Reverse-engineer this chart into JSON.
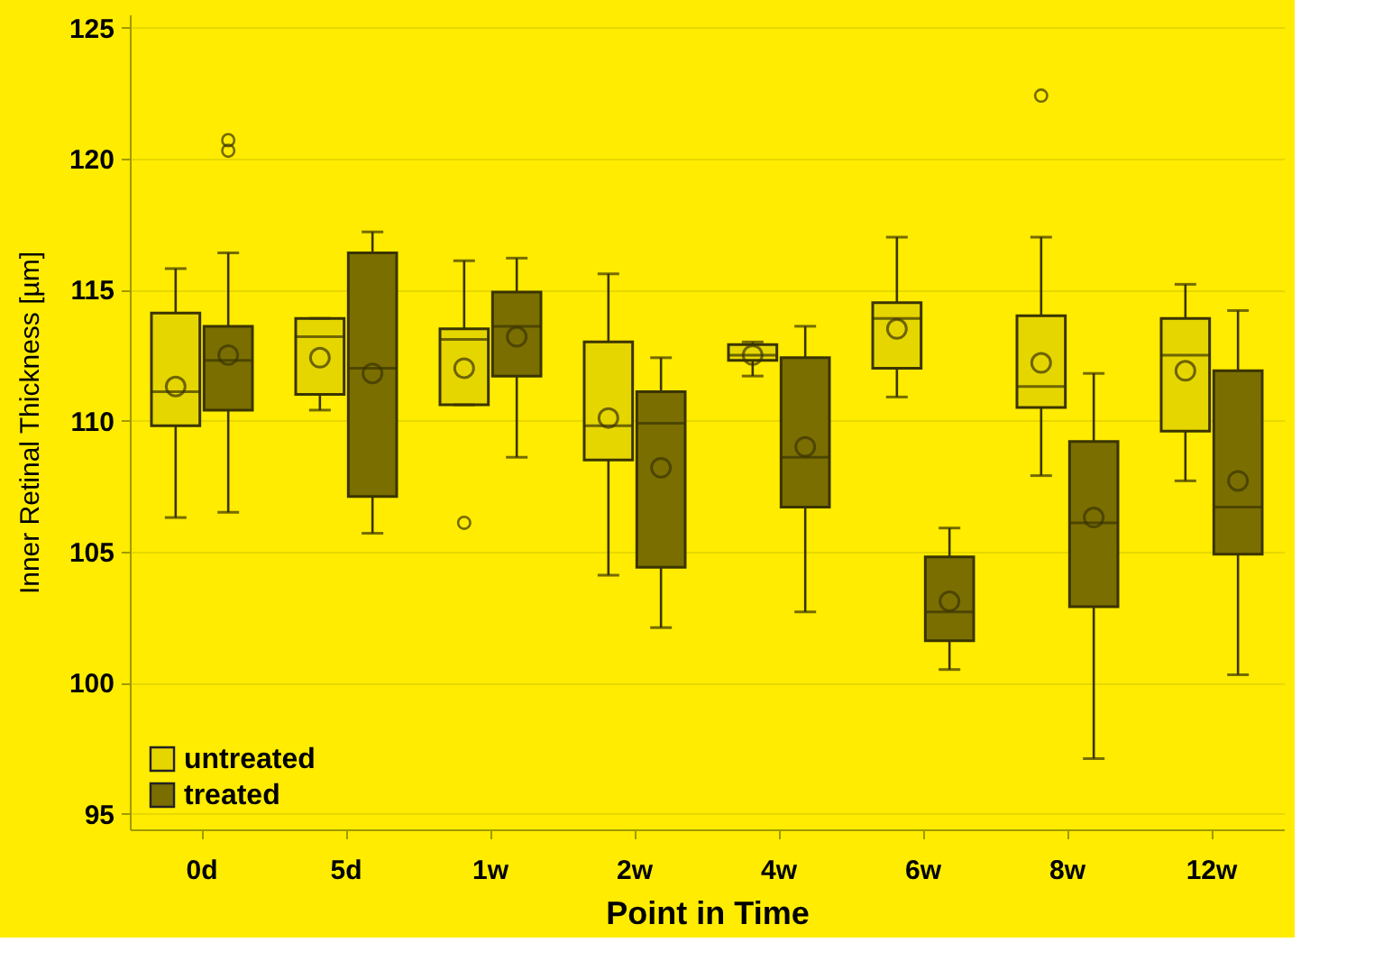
{
  "chart_data": {
    "type": "box",
    "xlabel": "Point in Time",
    "ylabel": "Inner Retinal Thickness [µm]",
    "categories": [
      "0d",
      "5d",
      "1w",
      "2w",
      "4w",
      "6w",
      "8w",
      "12w"
    ],
    "ylim": [
      94.4,
      125.5
    ],
    "yticks": [
      95,
      100,
      105,
      110,
      115,
      120,
      125
    ],
    "grid": "y",
    "legend": "bottom left",
    "series": [
      {
        "name": "untreated",
        "color": "#e6d600",
        "boxes": [
          {
            "low": 106.3,
            "q1": 109.8,
            "median": 111.1,
            "q3": 114.1,
            "high": 115.8,
            "mean": 111.3
          },
          {
            "low": 110.4,
            "q1": 111.0,
            "median": 113.2,
            "q3": 113.9,
            "high": 113.9,
            "mean": 112.4
          },
          {
            "low": 110.6,
            "q1": 110.6,
            "median": 113.1,
            "q3": 113.5,
            "high": 116.1,
            "mean": 112.0,
            "outliers": [
              106.1
            ]
          },
          {
            "low": 104.1,
            "q1": 108.5,
            "median": 109.8,
            "q3": 113.0,
            "high": 115.6,
            "mean": 110.1
          },
          {
            "low": 111.7,
            "q1": 112.3,
            "median": 112.5,
            "q3": 112.9,
            "high": 113.0,
            "mean": 112.5
          },
          {
            "low": 110.9,
            "q1": 112.0,
            "median": 113.9,
            "q3": 114.5,
            "high": 117.0,
            "mean": 113.5
          },
          {
            "low": 107.9,
            "q1": 110.5,
            "median": 111.3,
            "q3": 114.0,
            "high": 117.0,
            "mean": 112.2,
            "outliers": [
              122.4
            ]
          },
          {
            "low": 107.7,
            "q1": 109.6,
            "median": 112.5,
            "q3": 113.9,
            "high": 115.2,
            "mean": 111.9
          }
        ]
      },
      {
        "name": "treated",
        "color": "#7a6e00",
        "boxes": [
          {
            "low": 106.5,
            "q1": 110.4,
            "median": 112.3,
            "q3": 113.6,
            "high": 116.4,
            "mean": 112.5,
            "outliers": [
              120.7,
              120.3
            ]
          },
          {
            "low": 105.7,
            "q1": 107.1,
            "median": 112.0,
            "q3": 116.4,
            "high": 117.2,
            "mean": 111.8
          },
          {
            "low": 108.6,
            "q1": 111.7,
            "median": 113.6,
            "q3": 114.9,
            "high": 116.2,
            "mean": 113.2
          },
          {
            "low": 102.1,
            "q1": 104.4,
            "median": 109.9,
            "q3": 111.1,
            "high": 112.4,
            "mean": 108.2
          },
          {
            "low": 102.7,
            "q1": 106.7,
            "median": 108.6,
            "q3": 112.4,
            "high": 113.6,
            "mean": 109.0
          },
          {
            "low": 100.5,
            "q1": 101.6,
            "median": 102.7,
            "q3": 104.8,
            "high": 105.9,
            "mean": 103.1
          },
          {
            "low": 97.1,
            "q1": 102.9,
            "median": 106.1,
            "q3": 109.2,
            "high": 111.8,
            "mean": 106.3
          },
          {
            "low": 100.3,
            "q1": 104.9,
            "median": 106.7,
            "q3": 111.9,
            "high": 114.2,
            "mean": 107.7
          }
        ]
      }
    ]
  }
}
